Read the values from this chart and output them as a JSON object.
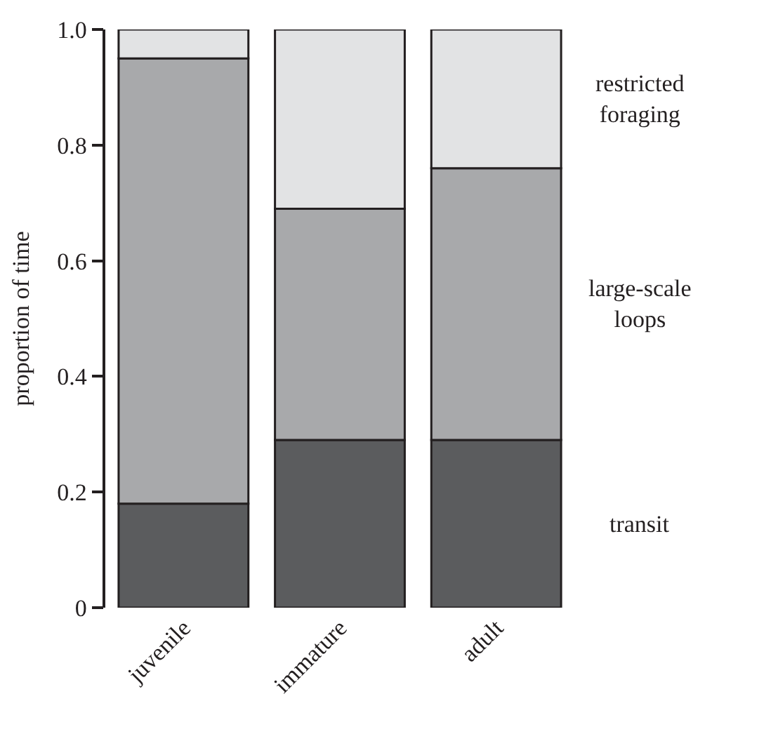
{
  "chart_data": {
    "type": "bar",
    "stacked": true,
    "ylabel": "proportion of time",
    "categories": [
      "juvenile",
      "immature",
      "adult"
    ],
    "series": [
      {
        "name": "transit",
        "color": "#5b5c5e",
        "values": [
          0.18,
          0.29,
          0.29
        ]
      },
      {
        "name": "large-scale loops",
        "color": "#a8a9ab",
        "values": [
          0.77,
          0.4,
          0.47
        ]
      },
      {
        "name": "restricted foraging",
        "color": "#e2e3e4",
        "values": [
          0.05,
          0.31,
          0.24
        ]
      }
    ],
    "ylim": [
      0,
      1.0
    ],
    "yticks": [
      0,
      0.2,
      0.4,
      0.6,
      0.8,
      {
        "value": 1.0,
        "label": "1.0"
      }
    ],
    "legend": false
  }
}
